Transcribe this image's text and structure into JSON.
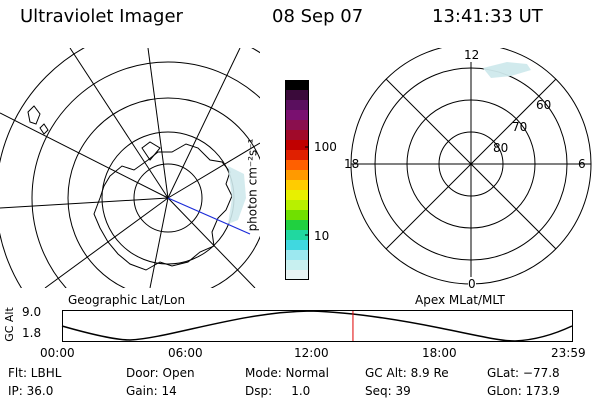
{
  "header": {
    "instrument": "Ultraviolet Imager",
    "date": "08 Sep 07",
    "time": "13:41:33 UT"
  },
  "colorbar": {
    "unit_label": "photon cm⁻²s⁻¹",
    "ticks": [
      "100",
      "10"
    ],
    "colors": [
      "#000000",
      "#3a0a3a",
      "#5a0f5e",
      "#7a1070",
      "#8a0f4e",
      "#a00a2a",
      "#c00000",
      "#e02000",
      "#ff6000",
      "#ff9a00",
      "#ffcc00",
      "#e8f000",
      "#b8f000",
      "#70e000",
      "#20d040",
      "#20d8a0",
      "#40d8e0",
      "#9ce8f0",
      "#c8f0f0",
      "#e8f4f4"
    ]
  },
  "geographic_map": {
    "label": "Geographic Lat/Lon"
  },
  "polar_plot": {
    "label": "Apex MLat/MLT",
    "mlt_labels": {
      "top": "12",
      "left": "18",
      "right": "6",
      "bottom": "0"
    },
    "lat_labels": [
      "60",
      "70",
      "80"
    ]
  },
  "timeline": {
    "axis_label": "GC Alt",
    "y_ticks": [
      "9.0",
      "1.8"
    ],
    "x_ticks": [
      "00:00",
      "06:00",
      "12:00",
      "18:00",
      "23:59"
    ],
    "current_time_fraction": 0.5705
  },
  "info": {
    "flt": "Flt: LBHL",
    "door": "Door: Open",
    "mode": "Mode: Normal",
    "gc_alt": "GC Alt: 8.9 Re",
    "glat": "GLat: −77.8",
    "ip": "IP: 36.0",
    "gain": "Gain: 14",
    "dsp": "Dsp:     1.0",
    "seq": "Seq: 39",
    "glon": "GLon: 173.9"
  }
}
